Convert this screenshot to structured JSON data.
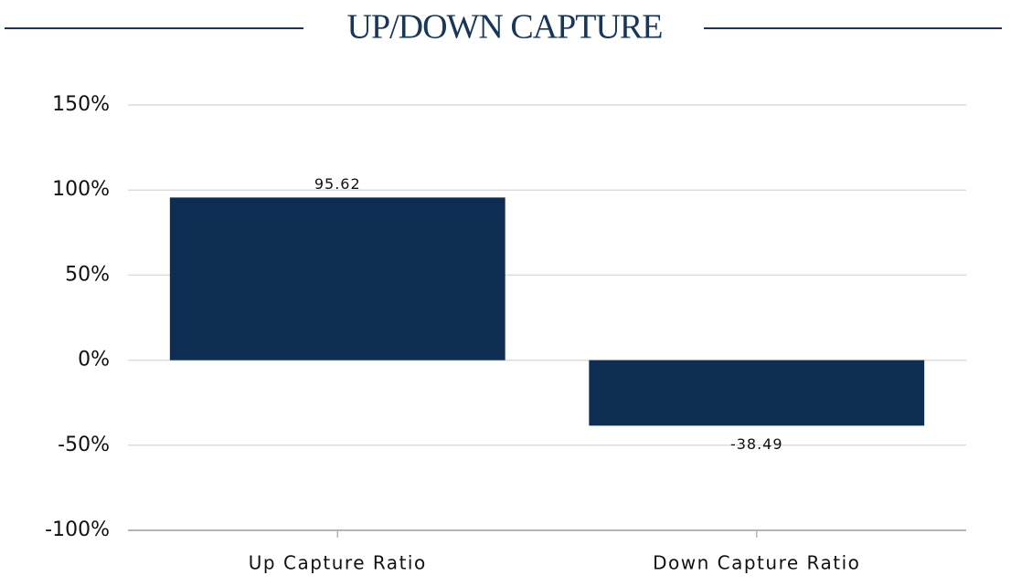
{
  "chart_data": {
    "type": "bar",
    "title": "UP/DOWN CAPTURE",
    "categories": [
      "Up Capture Ratio",
      "Down Capture Ratio"
    ],
    "values": [
      95.62,
      -38.49
    ],
    "color": "#0e2d52",
    "ylim": [
      -100,
      150
    ],
    "yticks": [
      {
        "value": -100,
        "label": "-100%"
      },
      {
        "value": -50,
        "label": "-50%"
      },
      {
        "value": 0,
        "label": "0%"
      },
      {
        "value": 50,
        "label": "50%"
      },
      {
        "value": 100,
        "label": "100%"
      },
      {
        "value": 150,
        "label": "150%"
      }
    ],
    "grid": true
  }
}
